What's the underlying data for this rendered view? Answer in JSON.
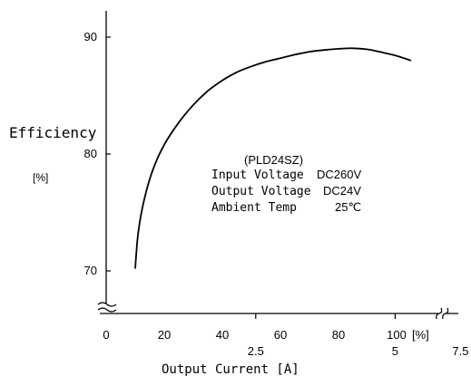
{
  "chart_data": {
    "type": "line",
    "ylabel": "Efficiency",
    "ylabel_unit": "[%]",
    "xlabel": "Output Current [A]",
    "x_percent_ticks": [
      "0",
      "20",
      "40",
      "60",
      "80",
      "100"
    ],
    "x_percent_unit": "[%]",
    "x_amp_ticks": [
      "2.5",
      "5",
      "7.5"
    ],
    "y_ticks": [
      "70",
      "80",
      "90"
    ],
    "xlim": [
      0,
      120
    ],
    "ylim": [
      69,
      93
    ],
    "grid": false,
    "annotation": {
      "model": "(PLD24SZ)",
      "rows": [
        {
          "label": "Input Voltage",
          "value": "DC260V"
        },
        {
          "label": "Output Voltage",
          "value": "DC24V"
        },
        {
          "label": "Ambient Temp",
          "value": "25℃"
        }
      ]
    },
    "series": [
      {
        "x": [
          10,
          11,
          13,
          16,
          20,
          25,
          30,
          35,
          40,
          45,
          50,
          55,
          60,
          65,
          70,
          75,
          80,
          85,
          90,
          95,
          100,
          105
        ],
        "y": [
          70.2,
          73.2,
          76.0,
          78.6,
          80.8,
          82.7,
          84.2,
          85.4,
          86.3,
          87.0,
          87.5,
          87.9,
          88.2,
          88.5,
          88.75,
          88.9,
          89.0,
          89.05,
          88.95,
          88.7,
          88.4,
          88.0
        ]
      }
    ]
  }
}
